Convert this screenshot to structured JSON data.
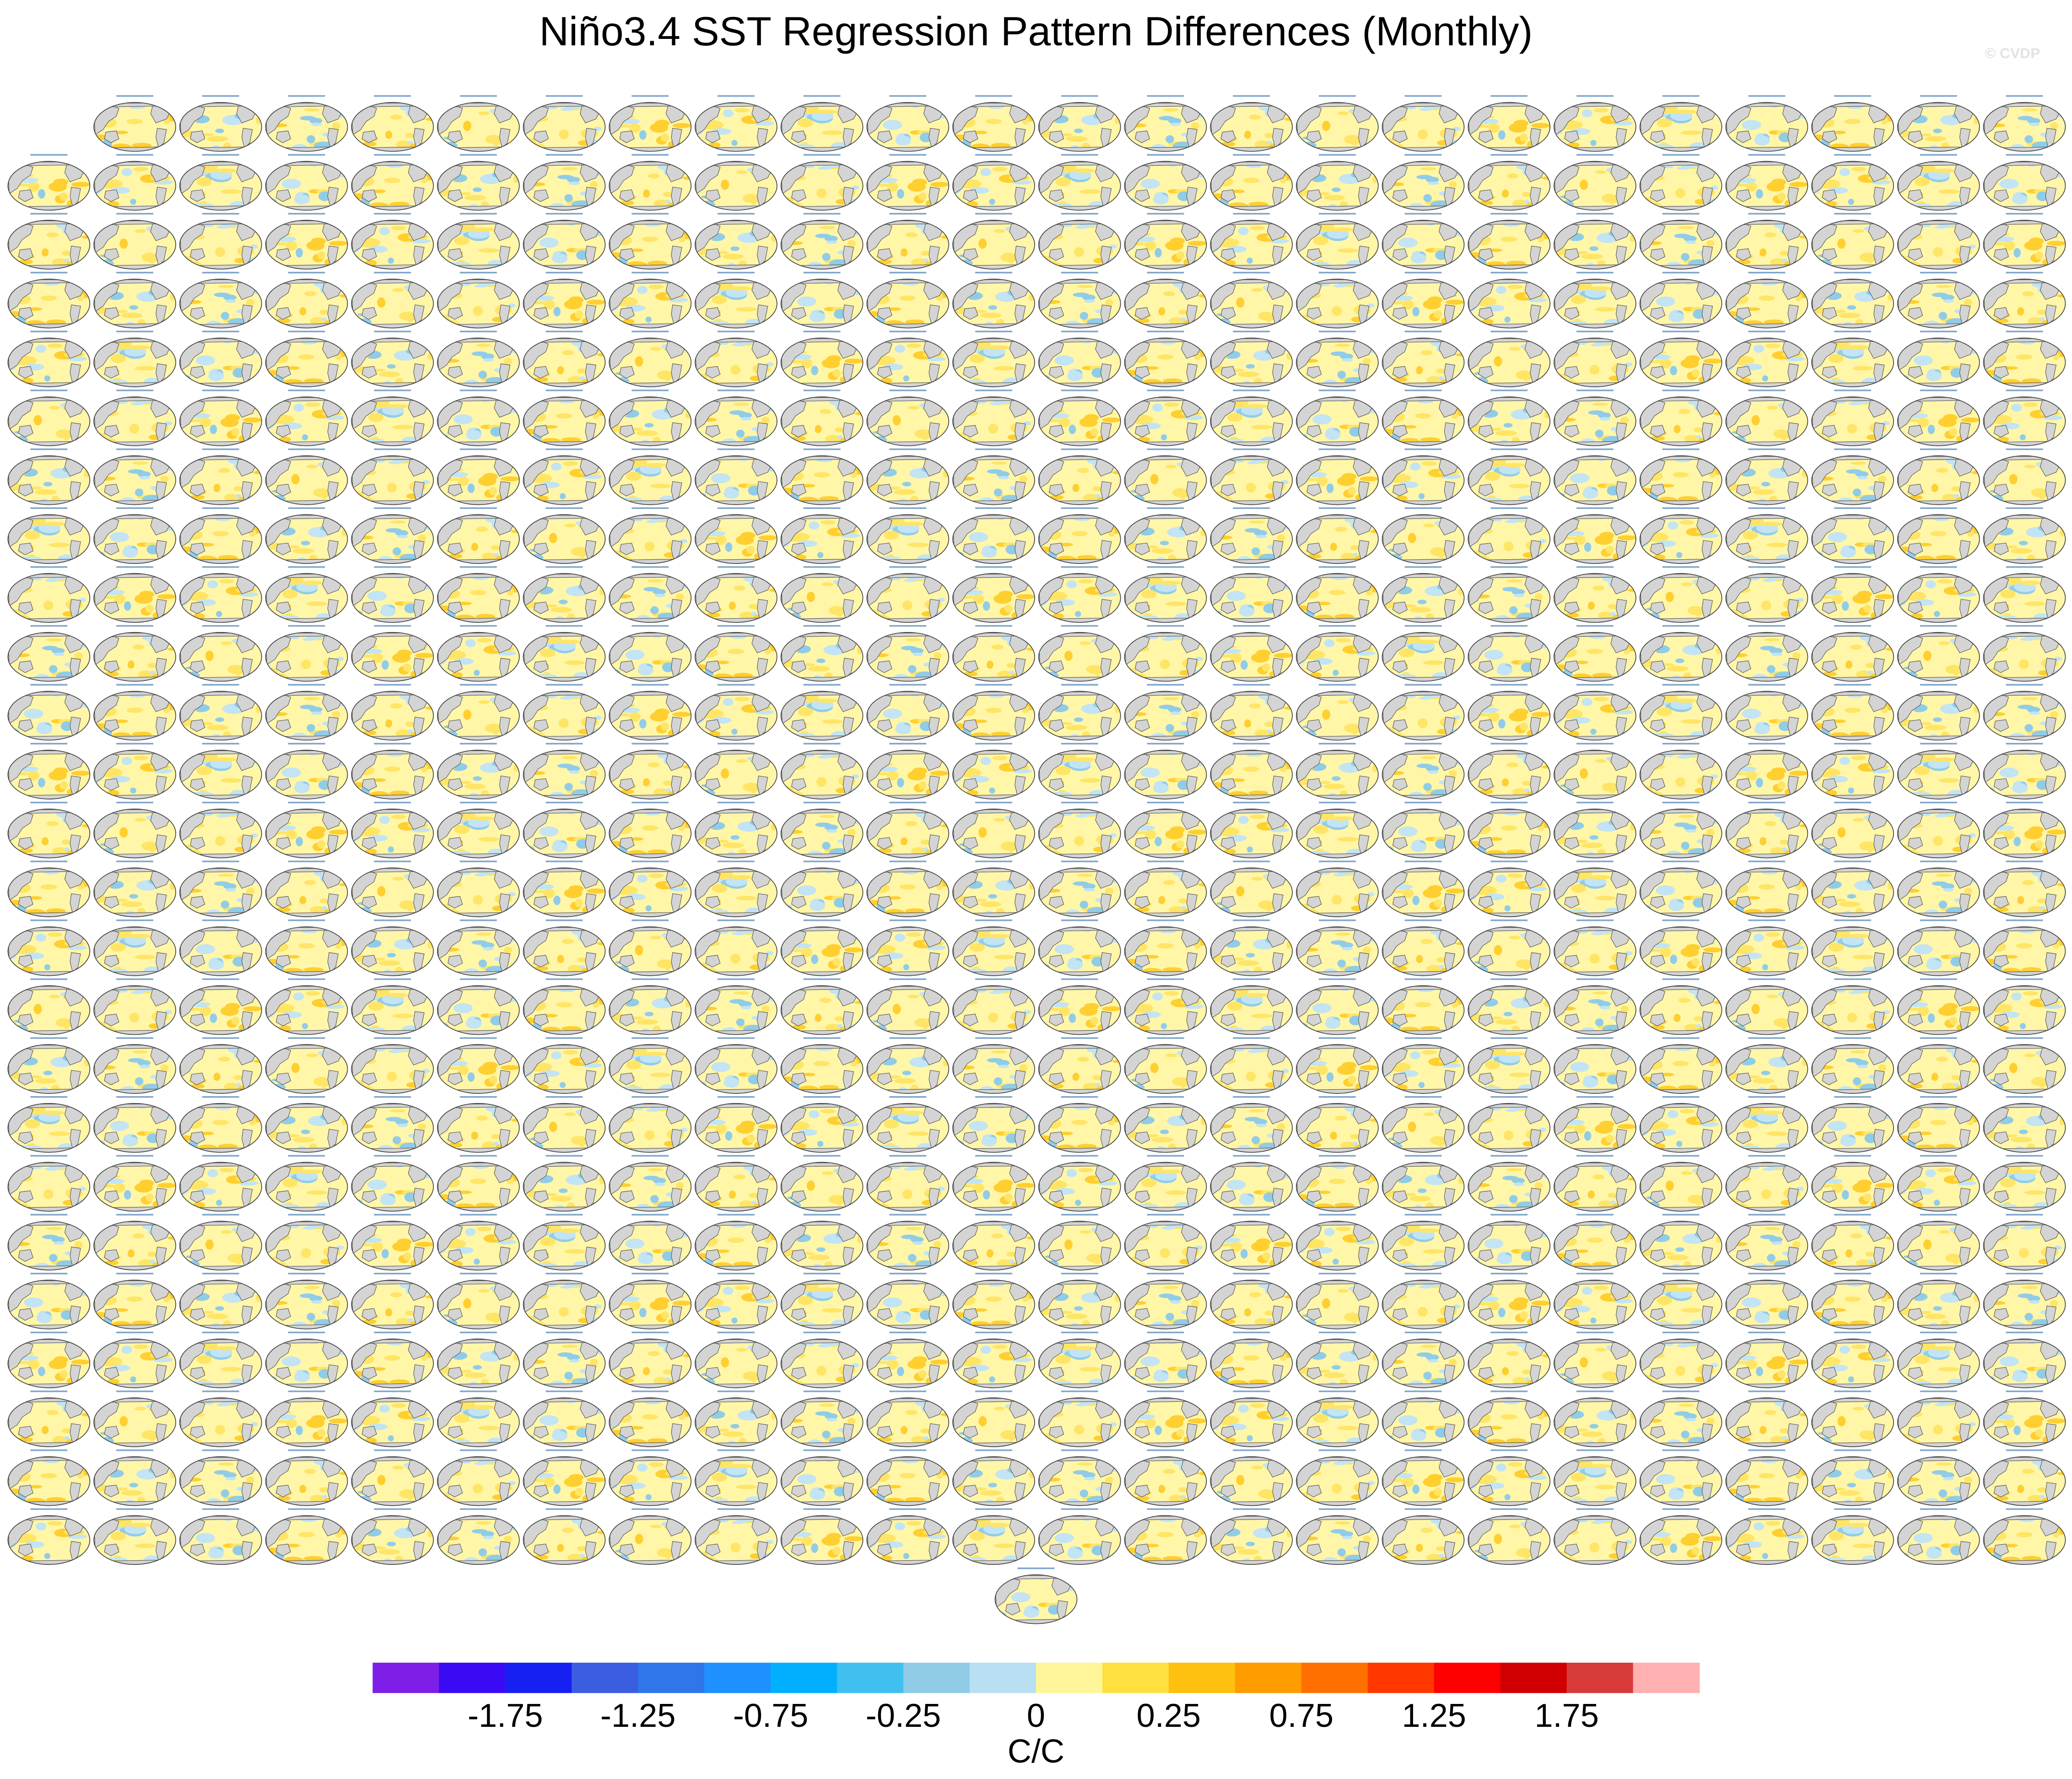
{
  "header": {
    "title": "Niño3.4 SST Regression Pattern Differences (Monthly)",
    "watermark": "© CVDP"
  },
  "colorbar": {
    "colors": [
      "#7e1fe8",
      "#3a0af5",
      "#1620f2",
      "#3b5ee0",
      "#2f76ea",
      "#1e90ff",
      "#00b0ff",
      "#40c0f0",
      "#90cce8",
      "#b8e0f2",
      "#fff59a",
      "#ffe040",
      "#ffc010",
      "#ff9c00",
      "#ff7000",
      "#ff3800",
      "#ff0000",
      "#d00000",
      "#d83a3a",
      "#ffb0b0"
    ],
    "labels": [
      "-1.75",
      "-1.25",
      "-0.75",
      "-0.25",
      "0",
      "0.25",
      "0.75",
      "1.25",
      "1.75"
    ],
    "units": "C/C"
  }
}
